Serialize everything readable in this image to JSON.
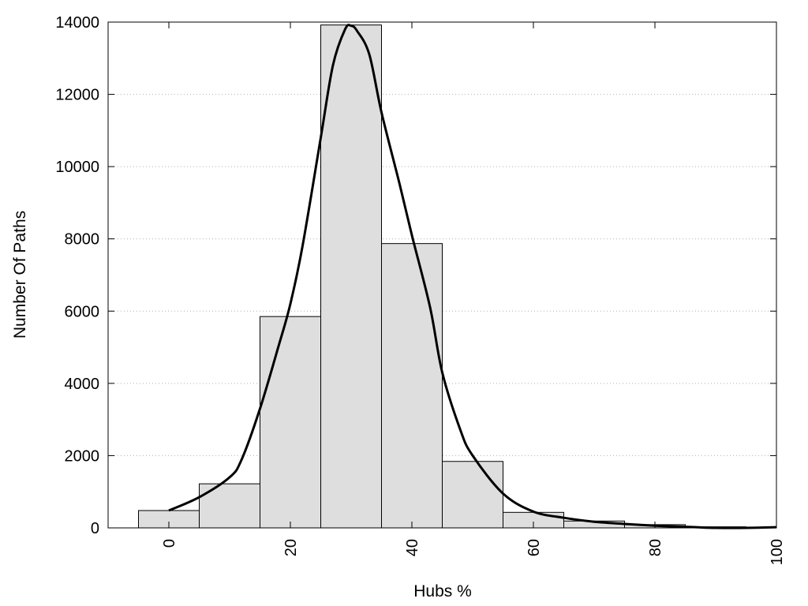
{
  "chart_data": {
    "type": "bar",
    "subtype": "histogram-with-density-curve",
    "xlabel": "Hubs %",
    "ylabel": "Number Of Paths",
    "xlim": [
      -10,
      100
    ],
    "ylim": [
      0,
      14000
    ],
    "x_ticks": [
      "0",
      "20",
      "40",
      "60",
      "80",
      "100"
    ],
    "y_ticks": [
      "0",
      "2000",
      "4000",
      "6000",
      "8000",
      "10000",
      "12000",
      "14000"
    ],
    "bin_width": 10,
    "bins": [
      {
        "center": 0,
        "value": 480
      },
      {
        "center": 10,
        "value": 1220
      },
      {
        "center": 20,
        "value": 5850
      },
      {
        "center": 30,
        "value": 13920
      },
      {
        "center": 40,
        "value": 7870
      },
      {
        "center": 50,
        "value": 1840
      },
      {
        "center": 60,
        "value": 430
      },
      {
        "center": 70,
        "value": 190
      },
      {
        "center": 80,
        "value": 90
      },
      {
        "center": 90,
        "value": 30
      }
    ],
    "curve": {
      "x": [
        0,
        5,
        10,
        12,
        15,
        18,
        20,
        22,
        25,
        27,
        29,
        30,
        31,
        33,
        35,
        38,
        40,
        43,
        45,
        48,
        50,
        55,
        60,
        65,
        70,
        75,
        80,
        85,
        90,
        95,
        100
      ],
      "y": [
        480,
        850,
        1400,
        1900,
        3300,
        5000,
        6200,
        7800,
        10800,
        12800,
        13800,
        13900,
        13750,
        13100,
        11500,
        9500,
        8100,
        6100,
        4300,
        2700,
        2000,
        950,
        450,
        280,
        170,
        110,
        60,
        30,
        0,
        0,
        20
      ]
    },
    "bar_fill": "#dedede",
    "bar_stroke": "#000000",
    "curve_color": "#000000",
    "grid": "horizontal-dotted"
  }
}
